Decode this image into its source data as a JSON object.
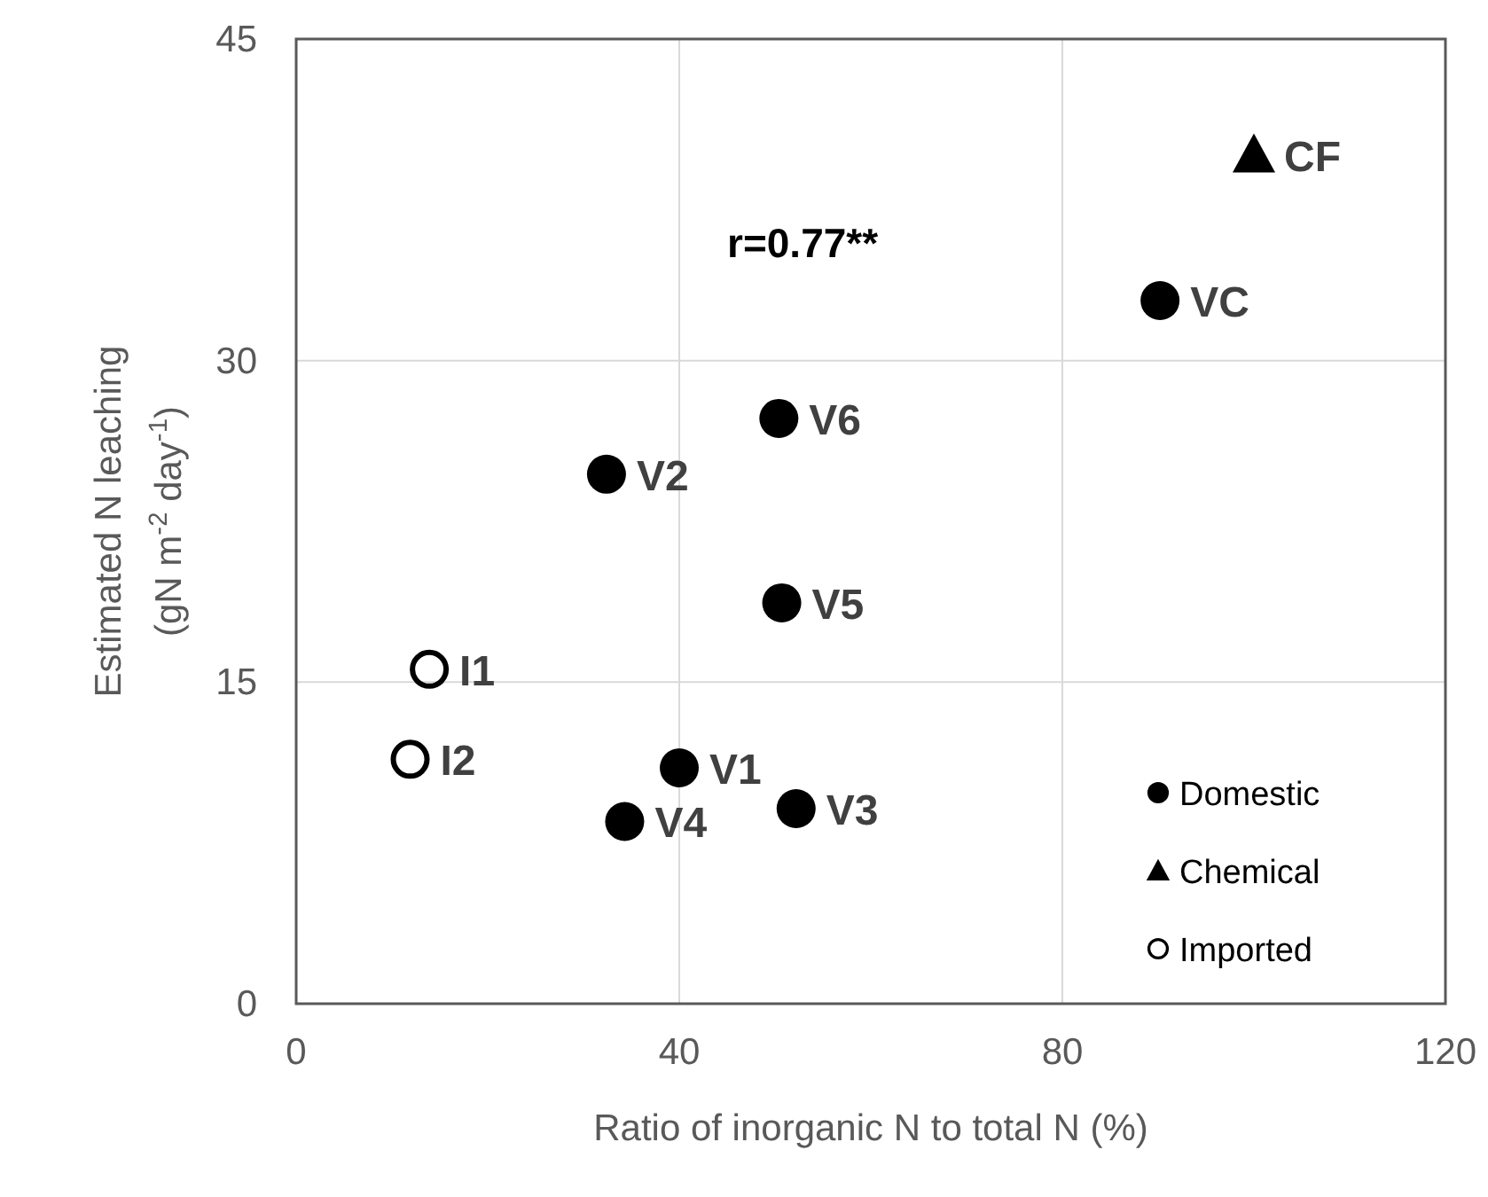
{
  "chart_data": {
    "type": "scatter",
    "xlabel": "Ratio of inorganic N to total N (%)",
    "ylabel": "Estimated N leaching\n(gN m$^{-2}$ day$^{-1}$)",
    "xlim": [
      0,
      120
    ],
    "xticks": [
      0,
      40,
      80,
      120
    ],
    "ylim": [
      0,
      45
    ],
    "yticks": [
      0,
      15,
      30,
      45
    ],
    "grid": true,
    "legend": "bottom right",
    "series": [
      {
        "name": "Domestic",
        "color": "#000000",
        "marker": "circle",
        "x": [
          40.0,
          32.4,
          52.2,
          34.3,
          50.7,
          50.4,
          90.2
        ],
        "values": [
          11.0,
          24.7,
          9.1,
          8.5,
          18.7,
          27.3,
          32.8
        ]
      },
      {
        "name": "Chemical",
        "color": "#000000",
        "marker": "triangle",
        "x": [
          100.0
        ],
        "values": [
          39.6
        ]
      },
      {
        "name": "Imported",
        "color": "#000000",
        "marker": "circle-open",
        "x": [
          13.9,
          11.9
        ],
        "values": [
          15.6,
          11.4
        ]
      }
    ],
    "annotations": [
      {
        "text": "V1",
        "x": 40.0,
        "y": 11.0
      },
      {
        "text": "V2",
        "x": 32.4,
        "y": 24.7
      },
      {
        "text": "V3",
        "x": 52.2,
        "y": 9.1
      },
      {
        "text": "V4",
        "x": 34.3,
        "y": 8.5
      },
      {
        "text": "V5",
        "x": 50.7,
        "y": 18.7
      },
      {
        "text": "V6",
        "x": 50.4,
        "y": 27.3
      },
      {
        "text": "VC",
        "x": 90.2,
        "y": 32.8
      },
      {
        "text": "CF",
        "x": 100.0,
        "y": 39.6
      },
      {
        "text": "I1",
        "x": 13.9,
        "y": 15.6
      },
      {
        "text": "I2",
        "x": 11.9,
        "y": 11.4
      },
      "r=0.77**"
    ]
  }
}
